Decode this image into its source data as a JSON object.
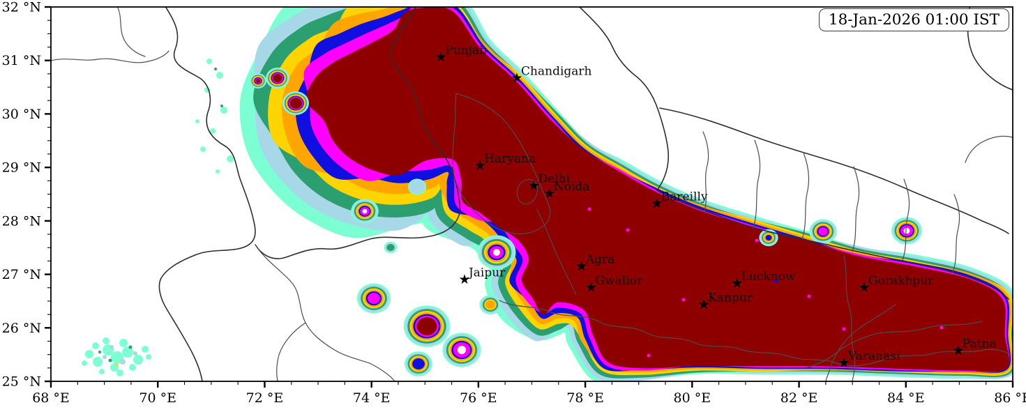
{
  "timestamp_badge": {
    "text": "18-Jan-2026 01:00 IST"
  },
  "axes": {
    "x": {
      "range": [
        68,
        86
      ],
      "tick_values": [
        68,
        70,
        72,
        74,
        76,
        78,
        80,
        82,
        84,
        86
      ],
      "tick_labels": [
        "68 °E",
        "70 °E",
        "72 °E",
        "74 °E",
        "76 °E",
        "78 °E",
        "80 °E",
        "82 °E",
        "84 °E",
        "86 °E"
      ],
      "minor_step": 0.5
    },
    "y": {
      "range": [
        25,
        32
      ],
      "tick_values": [
        25,
        26,
        27,
        28,
        29,
        30,
        31,
        32
      ],
      "tick_labels": [
        "25 °N",
        "26 °N",
        "27 °N",
        "28 °N",
        "29 °N",
        "30 °N",
        "31 °N",
        "32 °N"
      ],
      "minor_step": 0.25
    }
  },
  "cities": [
    {
      "name": "Punjab",
      "lon": 75.3,
      "lat": 31.07
    },
    {
      "name": "Chandigarh",
      "lon": 76.72,
      "lat": 30.68
    },
    {
      "name": "Haryana",
      "lon": 76.03,
      "lat": 29.04
    },
    {
      "name": "Delhi",
      "lon": 77.04,
      "lat": 28.66
    },
    {
      "name": "Noida",
      "lon": 77.33,
      "lat": 28.52
    },
    {
      "name": "Bareilly",
      "lon": 79.34,
      "lat": 28.33
    },
    {
      "name": "Agra",
      "lon": 77.93,
      "lat": 27.16
    },
    {
      "name": "Jaipur",
      "lon": 75.74,
      "lat": 26.91
    },
    {
      "name": "Gwalior",
      "lon": 78.11,
      "lat": 26.76
    },
    {
      "name": "Lucknow",
      "lon": 80.84,
      "lat": 26.84
    },
    {
      "name": "Kanpur",
      "lon": 80.22,
      "lat": 26.44
    },
    {
      "name": "Gorakhpur",
      "lon": 83.22,
      "lat": 26.76
    },
    {
      "name": "Varanasi",
      "lon": 82.84,
      "lat": 25.35
    },
    {
      "name": "Patna",
      "lon": 84.98,
      "lat": 25.58
    }
  ],
  "palette": {
    "background": "#ffffff",
    "band_names_low_to_high": [
      "aquamarine",
      "pale-blue",
      "sea-green",
      "gold",
      "orange",
      "blue",
      "magenta",
      "dark-red"
    ],
    "band_colors_low_to_high": [
      "#7dffd4",
      "#a6d8e7",
      "#2c9f70",
      "#ffd400",
      "#ffa500",
      "#0f0fe0",
      "#ff00ff",
      "#8e0000"
    ],
    "country_border": "#2d2d2d",
    "state_border": "#4c4c4c",
    "axis_color": "#000000"
  },
  "chart_data": {
    "type": "heatmap",
    "title": "",
    "description_of_content": "Filled contour map over northern India and surroundings, extent 68-86 E and 25-32 N; a large dark-red core covers the Indo-Gangetic plain (Punjab, Haryana, Delhi, Uttar Pradesh, Bihar) fringed by magenta, blue, orange, gold, green, pale-blue and aquamarine bands; scattered banded patches over Rajasthan and aquamarine speckles in the bottom-left; white elsewhere with gray political boundary lines",
    "x_axis_ticks": [
      "68 °E",
      "70 °E",
      "72 °E",
      "74 °E",
      "76 °E",
      "78 °E",
      "80 °E",
      "82 °E",
      "84 °E",
      "86 °E"
    ],
    "y_axis_ticks": [
      "25 °N",
      "26 °N",
      "27 °N",
      "28 °N",
      "29 °N",
      "30 °N",
      "31 °N",
      "32 °N"
    ],
    "annotation": "18-Jan-2026 01:00 IST"
  }
}
